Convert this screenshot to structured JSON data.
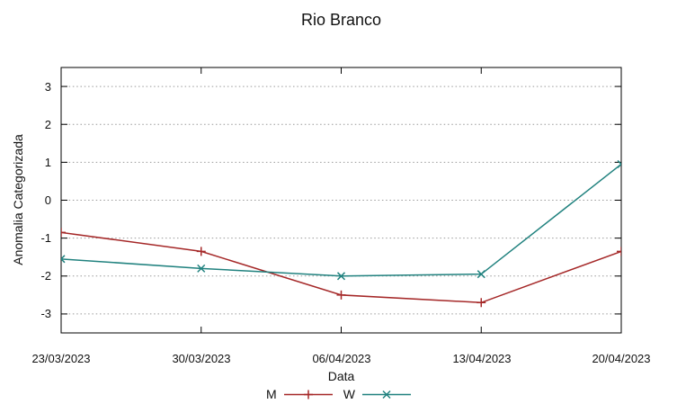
{
  "title": "Rio Branco",
  "chart_data": {
    "type": "line",
    "title": "Rio Branco",
    "xlabel": "Data",
    "ylabel": "Anomalia Categorizada",
    "categories": [
      "23/03/2023",
      "30/03/2023",
      "06/04/2023",
      "13/04/2023",
      "20/04/2023"
    ],
    "series": [
      {
        "name": "M",
        "marker": "plus",
        "color": "#a52828",
        "values": [
          -0.85,
          -1.35,
          -2.5,
          -2.7,
          -1.35
        ]
      },
      {
        "name": "W",
        "marker": "cross",
        "color": "#21827f",
        "values": [
          -1.55,
          -1.8,
          -2.0,
          -1.95,
          0.95
        ]
      }
    ],
    "ylim": [
      -3.5,
      3.5
    ],
    "y_ticks": [
      3,
      2,
      1,
      0,
      -1,
      -2,
      -3
    ],
    "y_tick_labels": [
      "3",
      "2",
      "1",
      "0",
      "-1",
      "-2",
      "-3"
    ],
    "grid": "horizontal-dotted",
    "legend_position": "bottom-center",
    "frame_color": "#000000",
    "grid_color": "#9a9a9a"
  }
}
